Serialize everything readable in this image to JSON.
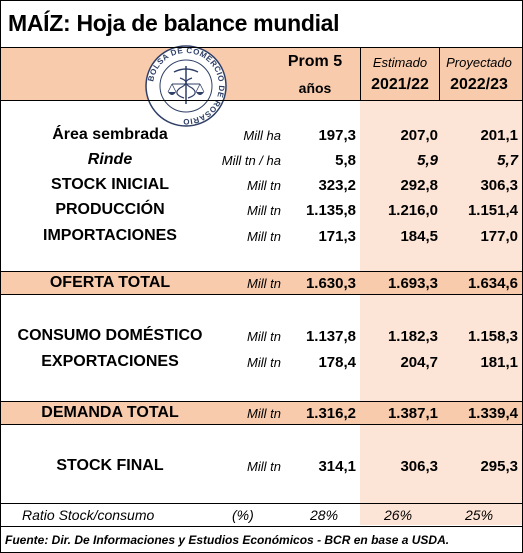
{
  "title": "MAÍZ: Hoja de balance mundial",
  "logo_text": "BOLSA DE COMERCIO DE ROSARIO",
  "header": {
    "col1_line1": "Prom 5",
    "col1_line2": "años",
    "col2_top": "Estimado",
    "col2_year": "2021/22",
    "col3_top": "Proyectado",
    "col3_year": "2022/23"
  },
  "rows": [
    {
      "label": "Área sembrada",
      "unit": "Mill ha",
      "v1": "197,3",
      "v2": "207,0",
      "v3": "201,1"
    },
    {
      "label": "Rinde",
      "unit": "Mill tn / ha",
      "v1": "5,8",
      "v2": "5,9",
      "v3": "5,7"
    },
    {
      "label": "STOCK INICIAL",
      "unit": "Mill tn",
      "v1": "323,2",
      "v2": "292,8",
      "v3": "306,3"
    },
    {
      "label": "PRODUCCIÓN",
      "unit": "Mill tn",
      "v1": "1.135,8",
      "v2": "1.216,0",
      "v3": "1.151,4"
    },
    {
      "label": "IMPORTACIONES",
      "unit": "Mill tn",
      "v1": "171,3",
      "v2": "184,5",
      "v3": "177,0"
    }
  ],
  "oferta": {
    "label": "OFERTA TOTAL",
    "unit": "Mill tn",
    "v1": "1.630,3",
    "v2": "1.693,3",
    "v3": "1.634,6"
  },
  "consumo": {
    "label": "CONSUMO DOMÉSTICO",
    "unit": "Mill tn",
    "v1": "1.137,8",
    "v2": "1.182,3",
    "v3": "1.158,3"
  },
  "exportaciones": {
    "label": "EXPORTACIONES",
    "unit": "Mill tn",
    "v1": "178,4",
    "v2": "204,7",
    "v3": "181,1"
  },
  "demanda": {
    "label": "DEMANDA TOTAL",
    "unit": "Mill tn",
    "v1": "1.316,2",
    "v2": "1.387,1",
    "v3": "1.339,4"
  },
  "stock_final": {
    "label": "STOCK FINAL",
    "unit": "Mill tn",
    "v1": "314,1",
    "v2": "306,3",
    "v3": "295,3"
  },
  "ratio": {
    "label": "Ratio Stock/consumo",
    "unit": "(%)",
    "v1": "28%",
    "v2": "26%",
    "v3": "25%"
  },
  "footer": "Fuente: Dir. De Informaciones y Estudios Económicos - BCR en base a USDA.",
  "colors": {
    "peach": "#f8cbad",
    "light_peach": "#fce4d6"
  }
}
